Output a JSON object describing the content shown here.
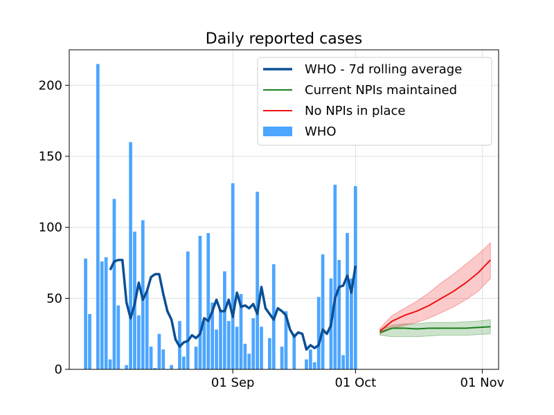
{
  "chart_data": {
    "type": "bar",
    "title": "Daily reported cases",
    "xlabel": "",
    "ylabel": "",
    "x_axis": {
      "type": "date",
      "range": [
        "2020-07-23",
        "2020-11-05"
      ],
      "ticks": [
        {
          "date": "2020-09-01",
          "label": "01 Sep"
        },
        {
          "date": "2020-10-01",
          "label": "01 Oct"
        },
        {
          "date": "2020-11-01",
          "label": "01 Nov"
        }
      ]
    },
    "y_axis": {
      "range": [
        0,
        225
      ],
      "ticks": [
        0,
        50,
        100,
        150,
        200
      ]
    },
    "grid": true,
    "legend": {
      "position": "top-right",
      "entries": [
        {
          "label": "WHO - 7d rolling average",
          "color": "#0b4f94",
          "kind": "line-thick"
        },
        {
          "label": "Current NPIs maintained",
          "color": "#1a7f1a",
          "kind": "line"
        },
        {
          "label": "No NPIs in place",
          "color": "#ee1111",
          "kind": "line"
        },
        {
          "label": "WHO",
          "color": "#4da6ff",
          "kind": "bar"
        }
      ]
    },
    "bars": {
      "name": "WHO",
      "color": "#4da6ff",
      "x": [
        "2020-07-27",
        "2020-07-28",
        "2020-07-29",
        "2020-07-30",
        "2020-07-31",
        "2020-08-01",
        "2020-08-02",
        "2020-08-03",
        "2020-08-04",
        "2020-08-05",
        "2020-08-06",
        "2020-08-07",
        "2020-08-08",
        "2020-08-09",
        "2020-08-10",
        "2020-08-11",
        "2020-08-12",
        "2020-08-13",
        "2020-08-14",
        "2020-08-15",
        "2020-08-16",
        "2020-08-17",
        "2020-08-18",
        "2020-08-19",
        "2020-08-20",
        "2020-08-21",
        "2020-08-22",
        "2020-08-23",
        "2020-08-24",
        "2020-08-25",
        "2020-08-26",
        "2020-08-27",
        "2020-08-28",
        "2020-08-29",
        "2020-08-30",
        "2020-08-31",
        "2020-09-01",
        "2020-09-02",
        "2020-09-03",
        "2020-09-04",
        "2020-09-05",
        "2020-09-06",
        "2020-09-07",
        "2020-09-08",
        "2020-09-09",
        "2020-09-10",
        "2020-09-11",
        "2020-09-12",
        "2020-09-13",
        "2020-09-14",
        "2020-09-15",
        "2020-09-16",
        "2020-09-17",
        "2020-09-18",
        "2020-09-19",
        "2020-09-20",
        "2020-09-21",
        "2020-09-22",
        "2020-09-23",
        "2020-09-24",
        "2020-09-25",
        "2020-09-26",
        "2020-09-27",
        "2020-09-28",
        "2020-09-29",
        "2020-09-30",
        "2020-10-01",
        "2020-10-02",
        "2020-10-03",
        "2020-10-04",
        "2020-10-05",
        "2020-10-06",
        "2020-10-07",
        "2020-10-08",
        "2020-10-09",
        "2020-10-10",
        "2020-10-11",
        "2020-10-12",
        "2020-10-13",
        "2020-10-14",
        "2020-10-15",
        "2020-10-16",
        "2020-10-17",
        "2020-10-18",
        "2020-10-19",
        "2020-10-20",
        "2020-10-21",
        "2020-10-22",
        "2020-10-23",
        "2020-10-24",
        "2020-10-25",
        "2020-10-26",
        "2020-10-27",
        "2020-10-28",
        "2020-10-29",
        "2020-10-30",
        "2020-10-31",
        "2020-11-01",
        "2020-11-02",
        "2020-11-03",
        "2020-11-04",
        "2020-11-05"
      ],
      "values": [
        78,
        39,
        0,
        215,
        76,
        79,
        7,
        120,
        45,
        0,
        3,
        160,
        97,
        38,
        105,
        55,
        16,
        1,
        25,
        14,
        0,
        3,
        0,
        34,
        9,
        83,
        0,
        16,
        94,
        34,
        96,
        47,
        28,
        42,
        69,
        34,
        131,
        30,
        53,
        18,
        11,
        36,
        125,
        30,
        0,
        22,
        74,
        0,
        16,
        41,
        0,
        25,
        0,
        0,
        7,
        14,
        5,
        51,
        81,
        0,
        64,
        130,
        77,
        10,
        96,
        64,
        129,
        0,
        0,
        0,
        0,
        0,
        0,
        0,
        0,
        0,
        0,
        0,
        0,
        0,
        0,
        0,
        0,
        0,
        0,
        0,
        0,
        0,
        0,
        0,
        0,
        0,
        0,
        0,
        0,
        0,
        0,
        0,
        0,
        0,
        0,
        0
      ]
    },
    "series": [
      {
        "name": "WHO - 7d rolling average",
        "color": "#0b4f94",
        "x": [
          "2020-08-02",
          "2020-08-03",
          "2020-08-04",
          "2020-08-05",
          "2020-08-06",
          "2020-08-07",
          "2020-08-08",
          "2020-08-09",
          "2020-08-10",
          "2020-08-11",
          "2020-08-12",
          "2020-08-13",
          "2020-08-14",
          "2020-08-15",
          "2020-08-16",
          "2020-08-17",
          "2020-08-18",
          "2020-08-19",
          "2020-08-20",
          "2020-08-21",
          "2020-08-22",
          "2020-08-23",
          "2020-08-24",
          "2020-08-25",
          "2020-08-26",
          "2020-08-27",
          "2020-08-28",
          "2020-08-29",
          "2020-08-30",
          "2020-08-31",
          "2020-09-01",
          "2020-09-02",
          "2020-09-03",
          "2020-09-04",
          "2020-09-05",
          "2020-09-06",
          "2020-09-07",
          "2020-09-08",
          "2020-09-09",
          "2020-09-10",
          "2020-09-11",
          "2020-09-12",
          "2020-09-13",
          "2020-09-14",
          "2020-09-15",
          "2020-09-16",
          "2020-09-17",
          "2020-09-18",
          "2020-09-19",
          "2020-09-20",
          "2020-09-21",
          "2020-09-22",
          "2020-09-23",
          "2020-09-24",
          "2020-09-25",
          "2020-09-26",
          "2020-09-27",
          "2020-09-28",
          "2020-09-29",
          "2020-09-30",
          "2020-10-01",
          "2020-10-02",
          "2020-10-03",
          "2020-10-04",
          "2020-10-05",
          "2020-10-06",
          "2020-10-07",
          "2020-10-08",
          "2020-10-09",
          "2020-10-10",
          "2020-10-11",
          "2020-10-12"
        ],
        "values": [
          70,
          76,
          77,
          77,
          47,
          36,
          46,
          61,
          49,
          55,
          65,
          67,
          67,
          53,
          41,
          35,
          21,
          16,
          19,
          20,
          24,
          22,
          25,
          36,
          34,
          41,
          49,
          41,
          41,
          49,
          37,
          54,
          44,
          45,
          43,
          46,
          39,
          58,
          43,
          39,
          35,
          43,
          41,
          38,
          28,
          23,
          26,
          25,
          14,
          17,
          15,
          17,
          28,
          25,
          31,
          50,
          58,
          59,
          66,
          54,
          73,
          0,
          0,
          0,
          0,
          0,
          0,
          0,
          0,
          0,
          0,
          0
        ]
      },
      {
        "name": "Current NPIs maintained",
        "color": "#1a7f1a",
        "x": [
          "2020-10-07",
          "2020-10-10",
          "2020-10-13",
          "2020-10-16",
          "2020-10-19",
          "2020-10-22",
          "2020-10-25",
          "2020-10-28",
          "2020-10-31",
          "2020-11-03"
        ],
        "values": [
          26,
          29,
          29,
          28.5,
          29,
          29,
          29,
          29,
          29.5,
          30
        ],
        "band_low": [
          24,
          23,
          23,
          23,
          23.5,
          24,
          24,
          24,
          24.5,
          25
        ],
        "band_high": [
          28,
          31,
          32,
          32,
          33,
          33,
          33,
          33.5,
          34,
          35
        ]
      },
      {
        "name": "No NPIs in place",
        "color": "#ee1111",
        "x": [
          "2020-10-07",
          "2020-10-10",
          "2020-10-13",
          "2020-10-16",
          "2020-10-19",
          "2020-10-22",
          "2020-10-25",
          "2020-10-28",
          "2020-10-31",
          "2020-11-03"
        ],
        "values": [
          27,
          34,
          38,
          41,
          45,
          50,
          55,
          61,
          68,
          77
        ],
        "band_low": [
          25,
          29,
          31,
          33,
          36,
          40,
          44,
          49,
          55,
          64
        ],
        "band_high": [
          29,
          38,
          43,
          48,
          54,
          61,
          67,
          74,
          81,
          89
        ]
      }
    ]
  }
}
